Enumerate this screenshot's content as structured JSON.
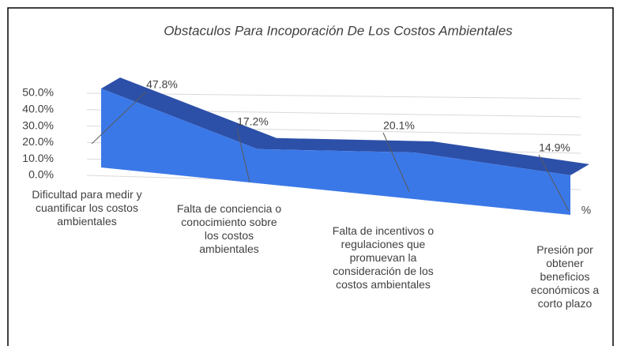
{
  "chart_data": {
    "type": "area3d",
    "title": "Obstaculos Para Incoporación De Los Costos Ambientales",
    "categories": [
      "Dificultad para medir y cuantificar los costos ambientales",
      "Falta de conciencia o conocimiento sobre los costos ambientales",
      "Falta de incentivos o regulaciones que promuevan la consideración de los costos ambientales",
      "Presión por obtener beneficios económicos a corto plazo"
    ],
    "series": [
      {
        "name": "%",
        "color": "#3b78e7",
        "values": [
          47.8,
          17.2,
          20.1,
          14.9
        ],
        "value_labels": [
          "47.8%",
          "17.2%",
          "20.1%",
          "14.9%"
        ]
      }
    ],
    "ylim": [
      0,
      50
    ],
    "yticks": [
      {
        "value": 0,
        "label": "0.0%"
      },
      {
        "value": 10,
        "label": "10.0%"
      },
      {
        "value": 20,
        "label": "20.0%"
      },
      {
        "value": 30,
        "label": "30.0%"
      },
      {
        "value": 40,
        "label": "40.0%"
      },
      {
        "value": 50,
        "label": "50.0%"
      }
    ],
    "grid": true
  }
}
